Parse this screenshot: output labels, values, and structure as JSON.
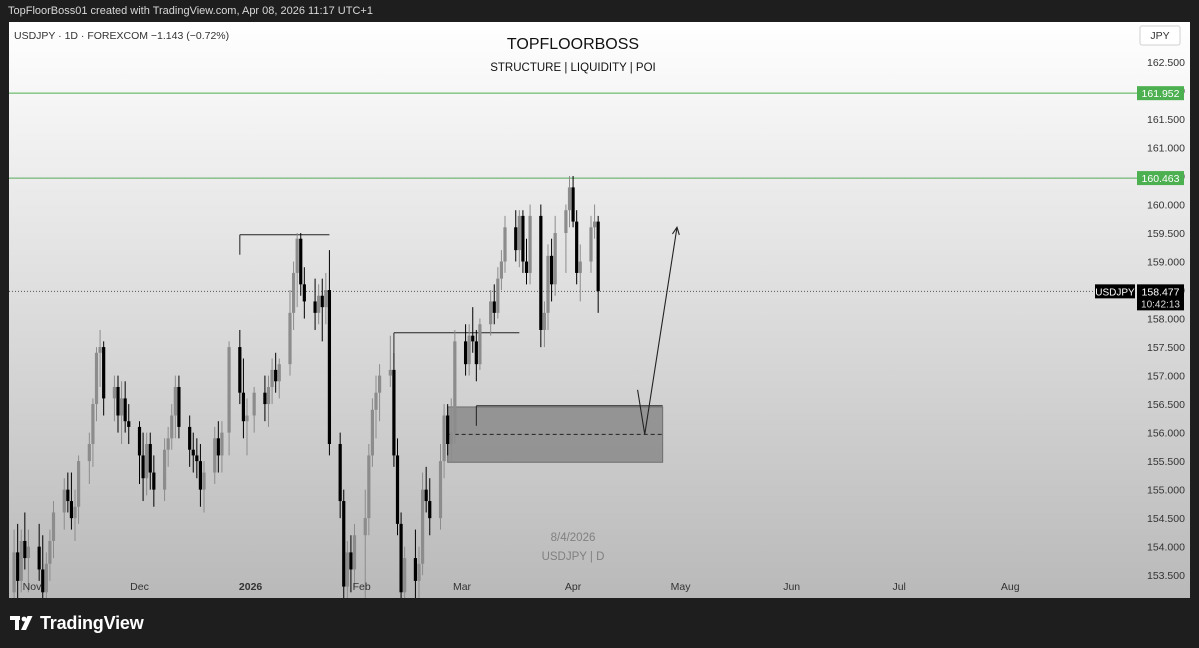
{
  "header": {
    "attribution": "TopFloorBoss01 created with TradingView.com, Apr 08, 2026 11:17 UTC+1"
  },
  "footer": {
    "brand": "TradingView"
  },
  "chart_data": {
    "type": "candlestick",
    "title": "TOPFLOORBOSS",
    "subtitle": "STRUCTURE | LIQUIDITY | POI",
    "symbol_info": "USDJPY · 1D · FOREXCOM  −1.143 (−0.72%)",
    "currency": "JPY",
    "watermark": {
      "date": "8/4/2026",
      "label": "USDJPY | D"
    },
    "last_price": {
      "symbol": "USDJPY",
      "value": "158.477",
      "countdown": "10:42:13"
    },
    "y_axis": {
      "range": [
        153.1,
        163.2
      ],
      "ticks": [
        "162.500",
        "162.000",
        "161.500",
        "161.000",
        "160.500",
        "160.000",
        "159.500",
        "159.000",
        "158.500",
        "158.000",
        "157.500",
        "157.000",
        "156.500",
        "156.000",
        "155.500",
        "155.000",
        "154.500",
        "154.000",
        "153.500"
      ]
    },
    "x_axis": {
      "labels": [
        {
          "label": "Nov",
          "date": "2025-11-01",
          "bold": false
        },
        {
          "label": "Dec",
          "date": "2025-12-01",
          "bold": false
        },
        {
          "label": "2026",
          "date": "2026-01-01",
          "bold": true
        },
        {
          "label": "Feb",
          "date": "2026-02-01",
          "bold": false
        },
        {
          "label": "Mar",
          "date": "2026-03-01",
          "bold": false
        },
        {
          "label": "Apr",
          "date": "2026-04-01",
          "bold": false
        },
        {
          "label": "May",
          "date": "2026-05-01",
          "bold": false
        },
        {
          "label": "Jun",
          "date": "2026-06-01",
          "bold": false
        },
        {
          "label": "Jul",
          "date": "2026-07-01",
          "bold": false
        },
        {
          "label": "Aug",
          "date": "2026-08-01",
          "bold": false
        }
      ]
    },
    "horizontal_levels": [
      {
        "value": 161.952,
        "label": "161.952",
        "color": "#4caf50"
      },
      {
        "value": 160.463,
        "label": "160.463",
        "color": "#4caf50"
      }
    ],
    "structure_lines": [
      {
        "from": "2025-12-29",
        "to": "2026-01-23",
        "value": 159.47
      },
      {
        "from": "2026-02-10",
        "to": "2026-03-17",
        "value": 157.75
      },
      {
        "from": "2026-03-05",
        "to": "2026-04-26",
        "value": 156.47
      }
    ],
    "poi_zone": {
      "from": "2026-02-25",
      "to": "2026-04-26",
      "top": 156.45,
      "bottom": 155.48,
      "mid": 155.97
    },
    "projection": [
      {
        "date": "2026-04-19",
        "price": 156.75
      },
      {
        "date": "2026-04-21",
        "price": 155.97
      },
      {
        "date": "2026-04-30",
        "price": 159.6
      }
    ],
    "candles": [
      {
        "d": "2025-10-27",
        "o": 153.2,
        "h": 154.3,
        "l": 153.0,
        "c": 153.9
      },
      {
        "d": "2025-10-28",
        "o": 153.9,
        "h": 154.4,
        "l": 153.1,
        "c": 153.4
      },
      {
        "d": "2025-10-29",
        "o": 153.4,
        "h": 154.3,
        "l": 153.2,
        "c": 154.1
      },
      {
        "d": "2025-10-30",
        "o": 154.1,
        "h": 154.6,
        "l": 153.6,
        "c": 153.8
      },
      {
        "d": "2025-10-31",
        "o": 153.8,
        "h": 154.3,
        "l": 153.2,
        "c": 154.0
      },
      {
        "d": "2025-11-03",
        "o": 154.0,
        "h": 154.4,
        "l": 153.4,
        "c": 153.6
      },
      {
        "d": "2025-11-04",
        "o": 153.6,
        "h": 154.2,
        "l": 153.0,
        "c": 153.2
      },
      {
        "d": "2025-11-05",
        "o": 153.2,
        "h": 153.9,
        "l": 153.0,
        "c": 153.7
      },
      {
        "d": "2025-11-06",
        "o": 153.7,
        "h": 154.3,
        "l": 153.4,
        "c": 154.1
      },
      {
        "d": "2025-11-07",
        "o": 154.1,
        "h": 154.8,
        "l": 153.8,
        "c": 154.6
      },
      {
        "d": "2025-11-10",
        "o": 154.6,
        "h": 155.2,
        "l": 154.3,
        "c": 155.0
      },
      {
        "d": "2025-11-11",
        "o": 155.0,
        "h": 155.3,
        "l": 154.6,
        "c": 154.8
      },
      {
        "d": "2025-11-12",
        "o": 154.8,
        "h": 155.3,
        "l": 154.3,
        "c": 154.5
      },
      {
        "d": "2025-11-13",
        "o": 154.5,
        "h": 155.0,
        "l": 154.1,
        "c": 154.7
      },
      {
        "d": "2025-11-14",
        "o": 154.7,
        "h": 155.6,
        "l": 154.4,
        "c": 155.5
      },
      {
        "d": "2025-11-17",
        "o": 155.5,
        "h": 156.0,
        "l": 155.1,
        "c": 155.8
      },
      {
        "d": "2025-11-18",
        "o": 155.8,
        "h": 156.6,
        "l": 155.4,
        "c": 156.5
      },
      {
        "d": "2025-11-19",
        "o": 156.5,
        "h": 157.5,
        "l": 156.2,
        "c": 157.4
      },
      {
        "d": "2025-11-20",
        "o": 157.4,
        "h": 157.8,
        "l": 156.8,
        "c": 157.5
      },
      {
        "d": "2025-11-21",
        "o": 157.5,
        "h": 157.6,
        "l": 156.3,
        "c": 156.6
      },
      {
        "d": "2025-11-24",
        "o": 156.6,
        "h": 157.0,
        "l": 156.2,
        "c": 156.8
      },
      {
        "d": "2025-11-25",
        "o": 156.8,
        "h": 157.0,
        "l": 156.0,
        "c": 156.3
      },
      {
        "d": "2025-11-26",
        "o": 156.3,
        "h": 156.9,
        "l": 155.8,
        "c": 156.6
      },
      {
        "d": "2025-11-27",
        "o": 156.6,
        "h": 156.9,
        "l": 156.0,
        "c": 156.2
      },
      {
        "d": "2025-11-28",
        "o": 156.2,
        "h": 156.5,
        "l": 155.8,
        "c": 156.1
      },
      {
        "d": "2025-12-01",
        "o": 156.1,
        "h": 156.2,
        "l": 155.1,
        "c": 155.6
      },
      {
        "d": "2025-12-02",
        "o": 155.6,
        "h": 156.0,
        "l": 154.8,
        "c": 155.2
      },
      {
        "d": "2025-12-03",
        "o": 155.2,
        "h": 156.0,
        "l": 154.9,
        "c": 155.8
      },
      {
        "d": "2025-12-04",
        "o": 155.8,
        "h": 156.0,
        "l": 155.0,
        "c": 155.3
      },
      {
        "d": "2025-12-05",
        "o": 155.3,
        "h": 155.6,
        "l": 154.7,
        "c": 155.0
      },
      {
        "d": "2025-12-08",
        "o": 155.0,
        "h": 155.9,
        "l": 154.8,
        "c": 155.7
      },
      {
        "d": "2025-12-09",
        "o": 155.7,
        "h": 156.1,
        "l": 155.4,
        "c": 155.9
      },
      {
        "d": "2025-12-10",
        "o": 155.9,
        "h": 156.5,
        "l": 155.7,
        "c": 156.3
      },
      {
        "d": "2025-12-11",
        "o": 156.3,
        "h": 157.0,
        "l": 155.9,
        "c": 156.8
      },
      {
        "d": "2025-12-12",
        "o": 156.8,
        "h": 157.0,
        "l": 155.9,
        "c": 156.1
      },
      {
        "d": "2025-12-15",
        "o": 156.1,
        "h": 156.3,
        "l": 155.4,
        "c": 155.7
      },
      {
        "d": "2025-12-16",
        "o": 155.7,
        "h": 156.0,
        "l": 155.3,
        "c": 155.6
      },
      {
        "d": "2025-12-17",
        "o": 155.6,
        "h": 155.9,
        "l": 155.2,
        "c": 155.5
      },
      {
        "d": "2025-12-18",
        "o": 155.5,
        "h": 155.8,
        "l": 154.7,
        "c": 155.0
      },
      {
        "d": "2025-12-19",
        "o": 155.0,
        "h": 155.5,
        "l": 154.6,
        "c": 155.3
      },
      {
        "d": "2025-12-22",
        "o": 155.3,
        "h": 156.1,
        "l": 155.1,
        "c": 155.9
      },
      {
        "d": "2025-12-23",
        "o": 155.9,
        "h": 156.2,
        "l": 155.3,
        "c": 155.6
      },
      {
        "d": "2025-12-24",
        "o": 155.6,
        "h": 156.2,
        "l": 155.3,
        "c": 156.0
      },
      {
        "d": "2025-12-26",
        "o": 156.0,
        "h": 157.6,
        "l": 155.6,
        "c": 157.5
      },
      {
        "d": "2025-12-29",
        "o": 157.5,
        "h": 157.8,
        "l": 156.5,
        "c": 156.7
      },
      {
        "d": "2025-12-30",
        "o": 156.7,
        "h": 157.3,
        "l": 155.9,
        "c": 156.2
      },
      {
        "d": "2025-12-31",
        "o": 156.2,
        "h": 156.6,
        "l": 155.6,
        "c": 156.3
      },
      {
        "d": "2026-01-02",
        "o": 156.3,
        "h": 156.8,
        "l": 156.0,
        "c": 156.7
      },
      {
        "d": "2026-01-05",
        "o": 156.7,
        "h": 157.0,
        "l": 156.2,
        "c": 156.5
      },
      {
        "d": "2026-01-06",
        "o": 156.5,
        "h": 157.0,
        "l": 156.1,
        "c": 156.8
      },
      {
        "d": "2026-01-07",
        "o": 156.8,
        "h": 157.3,
        "l": 156.5,
        "c": 157.1
      },
      {
        "d": "2026-01-08",
        "o": 157.1,
        "h": 157.4,
        "l": 156.7,
        "c": 156.9
      },
      {
        "d": "2026-01-09",
        "o": 156.9,
        "h": 157.3,
        "l": 156.6,
        "c": 157.2
      },
      {
        "d": "2026-01-12",
        "o": 157.2,
        "h": 158.5,
        "l": 157.0,
        "c": 158.1
      },
      {
        "d": "2026-01-13",
        "o": 158.1,
        "h": 159.0,
        "l": 157.8,
        "c": 158.8
      },
      {
        "d": "2026-01-14",
        "o": 158.8,
        "h": 159.5,
        "l": 158.2,
        "c": 159.4
      },
      {
        "d": "2026-01-15",
        "o": 159.4,
        "h": 159.5,
        "l": 158.4,
        "c": 158.6
      },
      {
        "d": "2026-01-16",
        "o": 158.6,
        "h": 158.9,
        "l": 158.0,
        "c": 158.3
      },
      {
        "d": "2026-01-19",
        "o": 158.3,
        "h": 158.7,
        "l": 157.8,
        "c": 158.1
      },
      {
        "d": "2026-01-20",
        "o": 158.1,
        "h": 158.6,
        "l": 157.9,
        "c": 158.4
      },
      {
        "d": "2026-01-21",
        "o": 158.4,
        "h": 158.7,
        "l": 157.6,
        "c": 158.2
      },
      {
        "d": "2026-01-22",
        "o": 158.2,
        "h": 158.8,
        "l": 157.9,
        "c": 158.5
      },
      {
        "d": "2026-01-23",
        "o": 158.5,
        "h": 159.2,
        "l": 155.6,
        "c": 155.8
      },
      {
        "d": "2026-01-26",
        "o": 155.8,
        "h": 156.0,
        "l": 154.5,
        "c": 154.8
      },
      {
        "d": "2026-01-27",
        "o": 154.8,
        "h": 155.0,
        "l": 153.0,
        "c": 153.3
      },
      {
        "d": "2026-01-28",
        "o": 153.3,
        "h": 154.1,
        "l": 153.0,
        "c": 153.9
      },
      {
        "d": "2026-01-29",
        "o": 153.9,
        "h": 154.2,
        "l": 153.2,
        "c": 153.6
      },
      {
        "d": "2026-01-30",
        "o": 153.6,
        "h": 154.4,
        "l": 153.3,
        "c": 154.2
      },
      {
        "d": "2026-02-02",
        "o": 154.2,
        "h": 155.0,
        "l": 153.1,
        "c": 154.5
      },
      {
        "d": "2026-02-03",
        "o": 154.5,
        "h": 155.8,
        "l": 154.2,
        "c": 155.6
      },
      {
        "d": "2026-02-04",
        "o": 155.6,
        "h": 156.6,
        "l": 155.4,
        "c": 156.4
      },
      {
        "d": "2026-02-05",
        "o": 156.4,
        "h": 157.0,
        "l": 155.9,
        "c": 156.7
      },
      {
        "d": "2026-02-06",
        "o": 156.7,
        "h": 157.2,
        "l": 156.2,
        "c": 157.0
      },
      {
        "d": "2026-02-09",
        "o": 157.0,
        "h": 157.7,
        "l": 156.8,
        "c": 157.1
      },
      {
        "d": "2026-02-10",
        "o": 157.1,
        "h": 157.4,
        "l": 155.4,
        "c": 155.6
      },
      {
        "d": "2026-02-11",
        "o": 155.6,
        "h": 155.9,
        "l": 154.2,
        "c": 154.4
      },
      {
        "d": "2026-02-12",
        "o": 154.4,
        "h": 154.6,
        "l": 153.0,
        "c": 153.2
      },
      {
        "d": "2026-02-13",
        "o": 153.2,
        "h": 154.0,
        "l": 153.0,
        "c": 153.8
      },
      {
        "d": "2026-02-16",
        "o": 153.8,
        "h": 154.3,
        "l": 153.1,
        "c": 153.4
      },
      {
        "d": "2026-02-17",
        "o": 153.4,
        "h": 154.0,
        "l": 153.0,
        "c": 153.7
      },
      {
        "d": "2026-02-18",
        "o": 153.7,
        "h": 155.3,
        "l": 153.5,
        "c": 155.0
      },
      {
        "d": "2026-02-19",
        "o": 155.0,
        "h": 155.4,
        "l": 154.6,
        "c": 154.8
      },
      {
        "d": "2026-02-20",
        "o": 154.8,
        "h": 155.2,
        "l": 154.2,
        "c": 154.5
      },
      {
        "d": "2026-02-23",
        "o": 154.5,
        "h": 155.8,
        "l": 154.3,
        "c": 155.5
      },
      {
        "d": "2026-02-24",
        "o": 155.5,
        "h": 156.5,
        "l": 155.2,
        "c": 156.3
      },
      {
        "d": "2026-02-25",
        "o": 156.3,
        "h": 156.5,
        "l": 155.6,
        "c": 155.8
      },
      {
        "d": "2026-02-26",
        "o": 155.8,
        "h": 156.6,
        "l": 155.5,
        "c": 156.0
      },
      {
        "d": "2026-02-27",
        "o": 156.0,
        "h": 157.8,
        "l": 155.8,
        "c": 157.6
      },
      {
        "d": "2026-03-02",
        "o": 157.6,
        "h": 157.9,
        "l": 157.0,
        "c": 157.2
      },
      {
        "d": "2026-03-03",
        "o": 157.2,
        "h": 157.9,
        "l": 157.0,
        "c": 157.7
      },
      {
        "d": "2026-03-04",
        "o": 157.7,
        "h": 158.2,
        "l": 157.4,
        "c": 157.6
      },
      {
        "d": "2026-03-05",
        "o": 157.6,
        "h": 157.8,
        "l": 156.9,
        "c": 157.2
      },
      {
        "d": "2026-03-06",
        "o": 157.2,
        "h": 158.0,
        "l": 157.1,
        "c": 157.9
      },
      {
        "d": "2026-03-09",
        "o": 157.9,
        "h": 158.5,
        "l": 157.7,
        "c": 158.3
      },
      {
        "d": "2026-03-10",
        "o": 158.3,
        "h": 158.6,
        "l": 157.9,
        "c": 158.1
      },
      {
        "d": "2026-03-11",
        "o": 158.1,
        "h": 158.9,
        "l": 158.0,
        "c": 158.7
      },
      {
        "d": "2026-03-12",
        "o": 158.7,
        "h": 159.2,
        "l": 158.5,
        "c": 159.0
      },
      {
        "d": "2026-03-13",
        "o": 159.0,
        "h": 159.8,
        "l": 158.8,
        "c": 159.6
      },
      {
        "d": "2026-03-16",
        "o": 159.6,
        "h": 159.9,
        "l": 159.0,
        "c": 159.2
      },
      {
        "d": "2026-03-17",
        "o": 159.2,
        "h": 159.9,
        "l": 158.9,
        "c": 159.8
      },
      {
        "d": "2026-03-18",
        "o": 159.8,
        "h": 159.9,
        "l": 158.8,
        "c": 159.0
      },
      {
        "d": "2026-03-19",
        "o": 159.0,
        "h": 159.4,
        "l": 158.6,
        "c": 158.8
      },
      {
        "d": "2026-03-20",
        "o": 158.8,
        "h": 160.0,
        "l": 158.6,
        "c": 159.8
      },
      {
        "d": "2026-03-23",
        "o": 159.8,
        "h": 160.0,
        "l": 157.5,
        "c": 157.8
      },
      {
        "d": "2026-03-24",
        "o": 157.8,
        "h": 158.3,
        "l": 157.5,
        "c": 158.1
      },
      {
        "d": "2026-03-25",
        "o": 158.1,
        "h": 159.3,
        "l": 157.8,
        "c": 159.1
      },
      {
        "d": "2026-03-26",
        "o": 159.1,
        "h": 159.4,
        "l": 158.3,
        "c": 158.6
      },
      {
        "d": "2026-03-27",
        "o": 158.6,
        "h": 159.8,
        "l": 158.4,
        "c": 159.5
      },
      {
        "d": "2026-03-30",
        "o": 159.5,
        "h": 160.0,
        "l": 158.8,
        "c": 159.9
      },
      {
        "d": "2026-03-31",
        "o": 159.9,
        "h": 160.5,
        "l": 159.6,
        "c": 160.3
      },
      {
        "d": "2026-04-01",
        "o": 160.3,
        "h": 160.5,
        "l": 159.6,
        "c": 159.7
      },
      {
        "d": "2026-04-02",
        "o": 159.7,
        "h": 159.9,
        "l": 158.6,
        "c": 158.8
      },
      {
        "d": "2026-04-03",
        "o": 158.8,
        "h": 159.3,
        "l": 158.3,
        "c": 159.0
      },
      {
        "d": "2026-04-06",
        "o": 159.0,
        "h": 159.8,
        "l": 158.8,
        "c": 159.6
      },
      {
        "d": "2026-04-07",
        "o": 159.6,
        "h": 160.0,
        "l": 159.4,
        "c": 159.7
      },
      {
        "d": "2026-04-08",
        "o": 159.7,
        "h": 159.8,
        "l": 158.1,
        "c": 158.48
      }
    ]
  }
}
